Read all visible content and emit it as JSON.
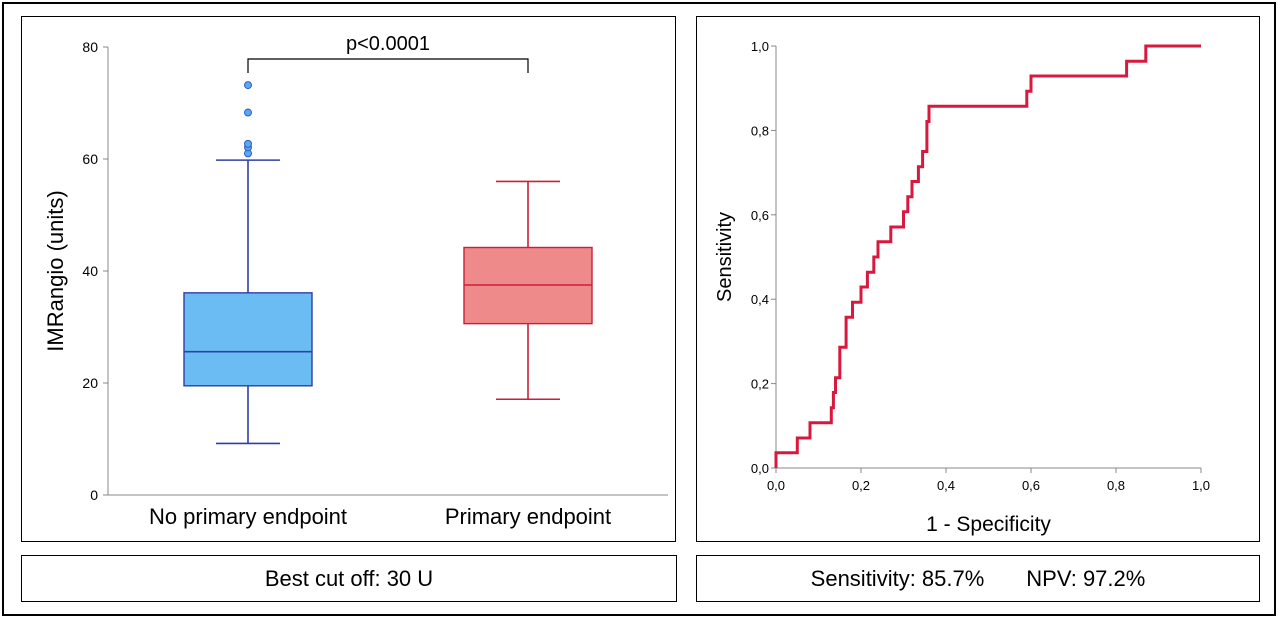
{
  "chart_data": [
    {
      "type": "box",
      "categories": [
        "No primary endpoint",
        "Primary endpoint"
      ],
      "ylabel": "IMRangio (units)",
      "ylim": [
        0,
        80
      ],
      "yticks": [
        0,
        20,
        40,
        60,
        80
      ],
      "annotation": "p<0.0001",
      "colors": [
        "#6cbcf4",
        "#ef8a8a"
      ],
      "edge_colors": [
        "#2f3fa6",
        "#c8203c"
      ],
      "boxes": [
        {
          "name": "No primary endpoint",
          "whisker_low": 9.2,
          "q1": 19.5,
          "median": 25.6,
          "q3": 36.1,
          "whisker_high": 59.8,
          "outliers": [
            61,
            62.1,
            62.7,
            68.3,
            73.2
          ]
        },
        {
          "name": "Primary endpoint",
          "whisker_low": 17.1,
          "q1": 30.6,
          "median": 37.5,
          "q3": 44.2,
          "whisker_high": 56,
          "outliers": []
        }
      ]
    },
    {
      "type": "line",
      "xlabel": "1 - Specificity",
      "ylabel": "Sensitivity",
      "xlim": [
        0,
        1
      ],
      "ylim": [
        0,
        1
      ],
      "ticks": [
        "0,0",
        "0,2",
        "0,4",
        "0,6",
        "0,8",
        "1,0"
      ],
      "line_color": "#d8193f",
      "series": [
        {
          "x": [
            0,
            0,
            0.05,
            0.05,
            0.08,
            0.08,
            0.13,
            0.13,
            0.135,
            0.135,
            0.14,
            0.14,
            0.15,
            0.15,
            0.165,
            0.165,
            0.18,
            0.18,
            0.2,
            0.2,
            0.215,
            0.215,
            0.23,
            0.23,
            0.24,
            0.24,
            0.25,
            0.25,
            0.27,
            0.27,
            0.3,
            0.3,
            0.31,
            0.31,
            0.32,
            0.32,
            0.335,
            0.335,
            0.345,
            0.345,
            0.355,
            0.355,
            0.36,
            0.36,
            0.59,
            0.59,
            0.6,
            0.6,
            0.825,
            0.825,
            0.87,
            0.87,
            1
          ],
          "y": [
            0,
            0.036,
            0.036,
            0.071,
            0.071,
            0.107,
            0.107,
            0.143,
            0.143,
            0.179,
            0.179,
            0.214,
            0.214,
            0.286,
            0.286,
            0.357,
            0.357,
            0.393,
            0.393,
            0.429,
            0.429,
            0.464,
            0.464,
            0.5,
            0.5,
            0.536,
            0.536,
            0.536,
            0.536,
            0.571,
            0.571,
            0.607,
            0.607,
            0.643,
            0.643,
            0.679,
            0.679,
            0.714,
            0.714,
            0.75,
            0.75,
            0.821,
            0.821,
            0.857,
            0.857,
            0.893,
            0.893,
            0.929,
            0.929,
            0.964,
            0.964,
            1,
            1
          ]
        }
      ]
    }
  ],
  "captions": {
    "left": "Best cut off: 30 U",
    "sensitivity": "Sensitivity: 85.7%",
    "npv": "NPV: 97.2%"
  }
}
